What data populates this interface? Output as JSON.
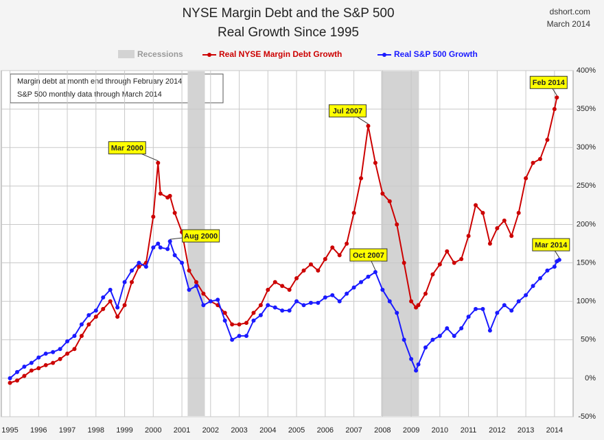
{
  "chart_data": {
    "type": "line",
    "title": "NYSE Margin Debt and the S&P 500",
    "subtitle": "Real Growth Since 1995",
    "source": "dshort.com",
    "date": "March 2014",
    "notes": [
      "Margin debt at month end through February 2014",
      "S&P 500 monthly data through March 2014"
    ],
    "recession_label": "Recessions",
    "recessions": [
      [
        2001.2,
        2001.8
      ],
      [
        2007.95,
        2009.27
      ]
    ],
    "x": [
      1995.0,
      1995.25,
      1995.5,
      1995.75,
      1996.0,
      1996.25,
      1996.5,
      1996.75,
      1997.0,
      1997.25,
      1997.5,
      1997.75,
      1998.0,
      1998.25,
      1998.5,
      1998.75,
      1999.0,
      1999.25,
      1999.5,
      1999.75,
      2000.0,
      2000.167,
      2000.25,
      2000.5,
      2000.583,
      2000.75,
      2001.0,
      2001.25,
      2001.5,
      2001.75,
      2002.0,
      2002.25,
      2002.5,
      2002.75,
      2003.0,
      2003.25,
      2003.5,
      2003.75,
      2004.0,
      2004.25,
      2004.5,
      2004.75,
      2005.0,
      2005.25,
      2005.5,
      2005.75,
      2006.0,
      2006.25,
      2006.5,
      2006.75,
      2007.0,
      2007.25,
      2007.5,
      2007.75,
      2008.0,
      2008.25,
      2008.5,
      2008.75,
      2009.0,
      2009.167,
      2009.25,
      2009.5,
      2009.75,
      2010.0,
      2010.25,
      2010.5,
      2010.75,
      2011.0,
      2011.25,
      2011.5,
      2011.75,
      2012.0,
      2012.25,
      2012.5,
      2012.75,
      2013.0,
      2013.25,
      2013.5,
      2013.75,
      2014.0,
      2014.083,
      2014.167
    ],
    "series": [
      {
        "name": "Real NYSE Margin Debt Growth",
        "color": "#cc0000",
        "values": [
          -6,
          -3,
          3,
          10,
          13,
          17,
          20,
          25,
          32,
          38,
          55,
          70,
          80,
          90,
          100,
          80,
          95,
          125,
          145,
          150,
          210,
          280,
          240,
          235,
          237,
          215,
          190,
          140,
          125,
          110,
          100,
          95,
          85,
          70,
          70,
          72,
          85,
          95,
          115,
          125,
          120,
          115,
          130,
          140,
          148,
          140,
          155,
          170,
          160,
          175,
          215,
          260,
          328,
          280,
          240,
          230,
          200,
          150,
          100,
          92,
          95,
          110,
          135,
          148,
          165,
          150,
          155,
          185,
          225,
          215,
          175,
          195,
          205,
          185,
          215,
          260,
          280,
          285,
          310,
          350,
          365,
          null
        ]
      },
      {
        "name": "Real S&P 500 Growth",
        "color": "#1a1aff",
        "values": [
          0,
          8,
          15,
          20,
          27,
          32,
          34,
          38,
          48,
          55,
          70,
          82,
          88,
          105,
          115,
          92,
          125,
          140,
          150,
          145,
          170,
          175,
          170,
          168,
          178,
          160,
          150,
          115,
          120,
          95,
          100,
          102,
          75,
          50,
          55,
          55,
          75,
          82,
          95,
          92,
          88,
          88,
          100,
          95,
          98,
          98,
          105,
          108,
          100,
          110,
          118,
          125,
          132,
          138,
          115,
          100,
          85,
          50,
          25,
          10,
          18,
          40,
          50,
          55,
          65,
          55,
          65,
          80,
          90,
          90,
          62,
          85,
          95,
          88,
          100,
          108,
          120,
          130,
          140,
          145,
          152,
          154
        ]
      }
    ],
    "annotations": [
      {
        "text": "Mar 2000",
        "x": 2000.167,
        "series": "Real NYSE Margin Debt Growth"
      },
      {
        "text": "Aug 2000",
        "x": 2000.583,
        "series": "Real S&P 500 Growth"
      },
      {
        "text": "Jul 2007",
        "x": 2007.5,
        "series": "Real NYSE Margin Debt Growth"
      },
      {
        "text": "Oct 2007",
        "x": 2007.75,
        "series": "Real S&P 500 Growth"
      },
      {
        "text": "Feb 2014",
        "x": 2014.083,
        "series": "Real NYSE Margin Debt Growth"
      },
      {
        "text": "Mar 2014",
        "x": 2014.167,
        "series": "Real S&P 500 Growth"
      }
    ],
    "xlim": [
      1994.7,
      2014.65
    ],
    "xticks": [
      1995,
      1996,
      1997,
      1998,
      1999,
      2000,
      2001,
      2002,
      2003,
      2004,
      2005,
      2006,
      2007,
      2008,
      2009,
      2010,
      2011,
      2012,
      2013,
      2014
    ],
    "ylim": [
      -50,
      400
    ],
    "yticks": [
      {
        "value": -50,
        "label": "-50%"
      },
      {
        "value": 0,
        "label": "0%"
      },
      {
        "value": 50,
        "label": "50%"
      },
      {
        "value": 100,
        "label": "100%"
      },
      {
        "value": 150,
        "label": "150%"
      },
      {
        "value": 200,
        "label": "200%"
      },
      {
        "value": 250,
        "label": "250%"
      },
      {
        "value": 300,
        "label": "300%"
      },
      {
        "value": 350,
        "label": "350%"
      },
      {
        "value": 400,
        "label": "400%"
      }
    ],
    "grid": true
  }
}
